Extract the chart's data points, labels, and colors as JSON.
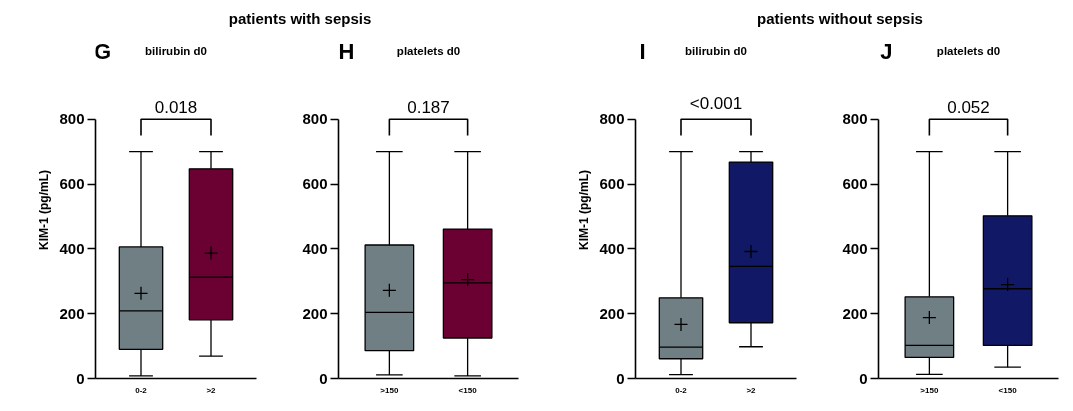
{
  "chart_data": [
    {
      "type": "box",
      "title": "bilirubin d0",
      "ylabel": "KIM-1 (pg/mL)",
      "categories": [
        "0-2",
        ">2"
      ],
      "colors": [
        "#6f7f83",
        "#6b0033"
      ],
      "boxes": [
        {
          "low": 8,
          "q1": 90,
          "median": 209,
          "q3": 406,
          "high": 700,
          "mean": 263
        },
        {
          "low": 69,
          "q1": 181,
          "median": 313,
          "q3": 647,
          "high": 700,
          "mean": 387
        }
      ],
      "ylim": [
        0,
        800
      ],
      "yticks": [
        0,
        200,
        400,
        600,
        800
      ],
      "grid": false,
      "annotations": [
        "G",
        "0.018",
        "patients with sepsis"
      ]
    },
    {
      "type": "box",
      "title": "platelets d0",
      "categories": [
        ">150",
        "<150"
      ],
      "colors": [
        "#6f7f83",
        "#6b0033"
      ],
      "boxes": [
        {
          "low": 11,
          "q1": 86,
          "median": 204,
          "q3": 412,
          "high": 700,
          "mean": 272
        },
        {
          "low": 8,
          "q1": 125,
          "median": 295,
          "q3": 461,
          "high": 700,
          "mean": 305
        }
      ],
      "ylim": [
        0,
        800
      ],
      "yticks": [
        0,
        200,
        400,
        600,
        800
      ],
      "grid": false,
      "annotations": [
        "H",
        "0.187"
      ]
    },
    {
      "type": "box",
      "title": "bilirubin d0",
      "ylabel": "KIM-1 (pg/mL)",
      "categories": [
        "0-2",
        ">2"
      ],
      "colors": [
        "#6f7f83",
        "#111866"
      ],
      "boxes": [
        {
          "low": 12,
          "q1": 61,
          "median": 97,
          "q3": 249,
          "high": 700,
          "mean": 167
        },
        {
          "low": 98,
          "q1": 172,
          "median": 346,
          "q3": 668,
          "high": 700,
          "mean": 392
        }
      ],
      "ylim": [
        0,
        800
      ],
      "yticks": [
        0,
        200,
        400,
        600,
        800
      ],
      "grid": false,
      "annotations": [
        "I",
        "<0.001",
        "patients without sepsis"
      ]
    },
    {
      "type": "box",
      "title": "platelets d0",
      "categories": [
        ">150",
        "<150"
      ],
      "colors": [
        "#6f7f83",
        "#111866"
      ],
      "boxes": [
        {
          "low": 13,
          "q1": 65,
          "median": 102,
          "q3": 252,
          "high": 700,
          "mean": 188
        },
        {
          "low": 35,
          "q1": 102,
          "median": 277,
          "q3": 502,
          "high": 700,
          "mean": 290
        }
      ],
      "ylim": [
        0,
        800
      ],
      "yticks": [
        0,
        200,
        400,
        600,
        800
      ],
      "grid": false,
      "annotations": [
        "J",
        "0.052"
      ]
    }
  ]
}
